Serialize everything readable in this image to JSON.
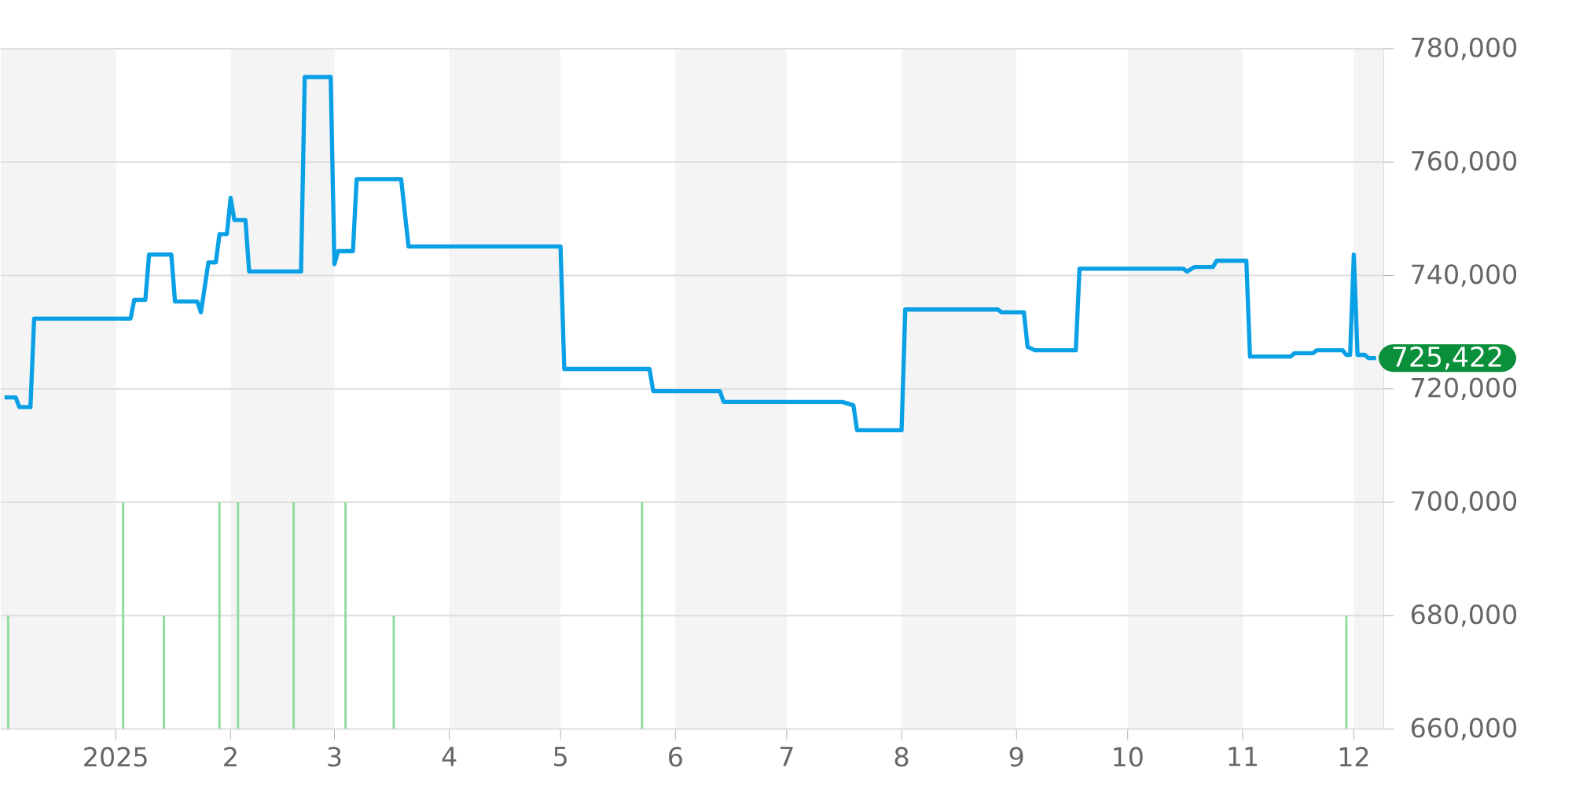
{
  "chart_data": {
    "type": "line",
    "series": [
      {
        "color": "#0aa0e6",
        "x": [
          "2024-12-02",
          "2024-12-05",
          "2024-12-06",
          "2024-12-09",
          "2024-12-10",
          "2025-01-05",
          "2025-01-06",
          "2025-01-09",
          "2025-01-10",
          "2025-01-16",
          "2025-01-17",
          "2025-01-23",
          "2025-01-24",
          "2025-01-26",
          "2025-01-28",
          "2025-01-29",
          "2025-01-31",
          "2025-02-01",
          "2025-02-02",
          "2025-02-05",
          "2025-02-06",
          "2025-02-20",
          "2025-02-21",
          "2025-02-28",
          "2025-03-01",
          "2025-03-02",
          "2025-03-06",
          "2025-03-07",
          "2025-03-19",
          "2025-03-21",
          "2025-05-01",
          "2025-05-02",
          "2025-05-25",
          "2025-05-26",
          "2025-06-13",
          "2025-06-14",
          "2025-07-16",
          "2025-07-19",
          "2025-07-20",
          "2025-08-01",
          "2025-08-02",
          "2025-08-27",
          "2025-08-28",
          "2025-09-03",
          "2025-09-04",
          "2025-09-06",
          "2025-09-17",
          "2025-09-18",
          "2025-10-16",
          "2025-10-17",
          "2025-10-19",
          "2025-10-24",
          "2025-10-25",
          "2025-11-02",
          "2025-11-03",
          "2025-11-14",
          "2025-11-15",
          "2025-11-20",
          "2025-11-21",
          "2025-11-28",
          "2025-11-29",
          "2025-11-30",
          "2025-12-01",
          "2025-12-02",
          "2025-12-04",
          "2025-12-05",
          "2025-12-07"
        ],
        "values": [
          718500,
          718500,
          716800,
          716800,
          732400,
          732400,
          735700,
          735700,
          743700,
          743700,
          735400,
          735400,
          733500,
          742300,
          742300,
          747300,
          747300,
          753700,
          749800,
          749800,
          740700,
          740700,
          775000,
          775000,
          742000,
          744300,
          744300,
          757000,
          757000,
          745100,
          745100,
          723500,
          723500,
          719600,
          719600,
          717700,
          717700,
          717100,
          712700,
          712700,
          734000,
          734000,
          733500,
          733500,
          727400,
          726800,
          726800,
          741200,
          741200,
          740700,
          741500,
          741500,
          742600,
          742600,
          725700,
          725700,
          726300,
          726300,
          726800,
          726800,
          726000,
          726000,
          743700,
          726000,
          726000,
          725422,
          725422
        ]
      },
      {
        "type": "bar",
        "color": "#90dc9c",
        "x": [
          "2024-12-03",
          "2025-01-03",
          "2025-01-14",
          "2025-01-29",
          "2025-02-03",
          "2025-02-18",
          "2025-03-04",
          "2025-03-17",
          "2025-05-23",
          "2025-11-29"
        ],
        "values": [
          680000,
          700000,
          680000,
          700000,
          700000,
          700000,
          700000,
          680000,
          700000,
          680000
        ]
      }
    ],
    "xlim": [
      "2024-12-01",
      "2025-12-09"
    ],
    "xticks": [
      {
        "value": "2025-01-01",
        "label": "2025"
      },
      {
        "value": "2025-02-01",
        "label": "2"
      },
      {
        "value": "2025-03-01",
        "label": "3"
      },
      {
        "value": "2025-04-01",
        "label": "4"
      },
      {
        "value": "2025-05-01",
        "label": "5"
      },
      {
        "value": "2025-06-01",
        "label": "6"
      },
      {
        "value": "2025-07-01",
        "label": "7"
      },
      {
        "value": "2025-08-01",
        "label": "8"
      },
      {
        "value": "2025-09-01",
        "label": "9"
      },
      {
        "value": "2025-10-01",
        "label": "10"
      },
      {
        "value": "2025-11-01",
        "label": "11"
      },
      {
        "value": "2025-12-01",
        "label": "12"
      }
    ],
    "ylim": [
      660000,
      780000
    ],
    "yticks": [
      {
        "value": 660000,
        "label": "660,000"
      },
      {
        "value": 680000,
        "label": "680,000"
      },
      {
        "value": 700000,
        "label": "700,000"
      },
      {
        "value": 720000,
        "label": "720,000"
      },
      {
        "value": 740000,
        "label": "740,000"
      },
      {
        "value": 760000,
        "label": "760,000"
      },
      {
        "value": 780000,
        "label": "780,000"
      }
    ],
    "grid": "y",
    "bands": [
      {
        "axis": "x",
        "from": "2024-12-01",
        "to": "2025-01-01",
        "color": "#f4f4f4"
      },
      {
        "axis": "x",
        "from": "2025-02-01",
        "to": "2025-03-01",
        "color": "#f4f4f4"
      },
      {
        "axis": "x",
        "from": "2025-04-01",
        "to": "2025-05-01",
        "color": "#f4f4f4"
      },
      {
        "axis": "x",
        "from": "2025-06-01",
        "to": "2025-07-01",
        "color": "#f4f4f4"
      },
      {
        "axis": "x",
        "from": "2025-08-01",
        "to": "2025-09-01",
        "color": "#f4f4f4"
      },
      {
        "axis": "x",
        "from": "2025-10-01",
        "to": "2025-11-01",
        "color": "#f4f4f4"
      },
      {
        "axis": "x",
        "from": "2025-12-01",
        "to": "2025-12-09",
        "color": "#f4f4f4"
      }
    ],
    "annotations": [
      {
        "text": "725,422",
        "x": "2025-12-07",
        "y": 725422
      }
    ]
  }
}
